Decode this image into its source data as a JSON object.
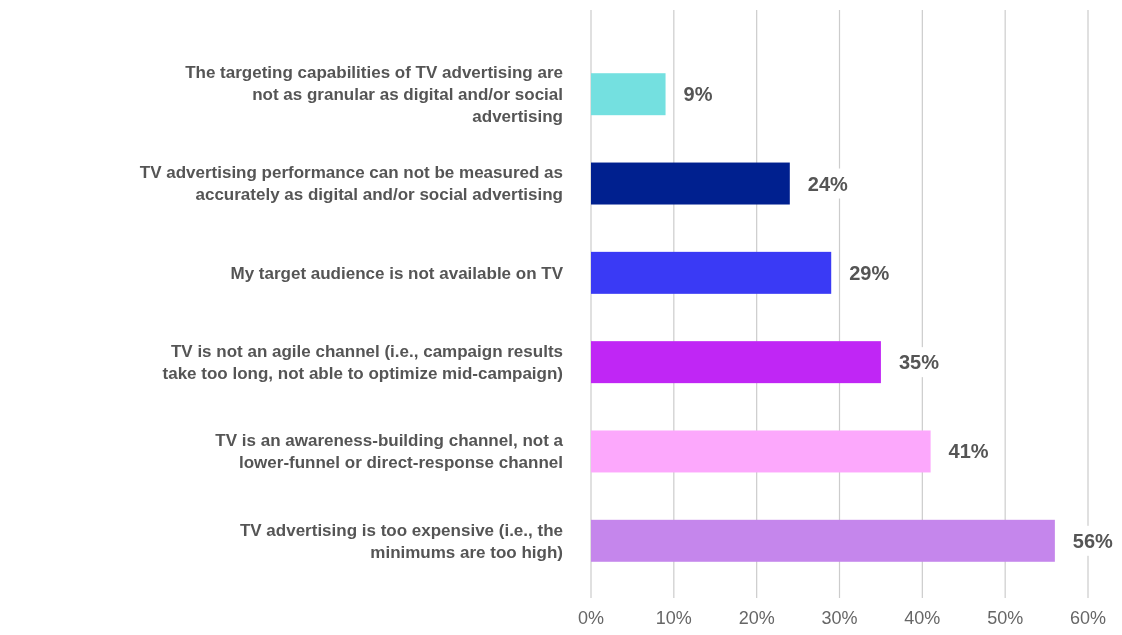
{
  "chart_data": {
    "type": "bar",
    "orientation": "horizontal",
    "categories": [
      "The targeting capabilities of TV advertising are not as granular as digital and/or social advertising",
      "TV advertising performance can not be measured as accurately as digital and/or social advertising",
      "My target audience is not available on TV",
      "TV is not an agile channel (i.e., campaign results take too long, not able to optimize mid-campaign)",
      "TV is an awareness-building channel, not a lower-funnel or direct-response channel",
      "TV advertising is too expensive (i.e., the minimums are too high)"
    ],
    "values": [
      9,
      24,
      29,
      35,
      41,
      56
    ],
    "colors": [
      "#74e0e0",
      "#00208f",
      "#3a3af5",
      "#c026f5",
      "#fca8fc",
      "#c586ec"
    ],
    "value_labels": [
      "9%",
      "24%",
      "29%",
      "35%",
      "41%",
      "56%"
    ],
    "xlim": [
      0,
      60
    ],
    "xticks": [
      {
        "value": 0,
        "label": "0%"
      },
      {
        "value": 10,
        "label": "10%"
      },
      {
        "value": 20,
        "label": "20%"
      },
      {
        "value": 30,
        "label": "30%"
      },
      {
        "value": 40,
        "label": "40%"
      },
      {
        "value": 50,
        "label": "50%"
      },
      {
        "value": 60,
        "label": "60%"
      }
    ],
    "grid": "x"
  }
}
